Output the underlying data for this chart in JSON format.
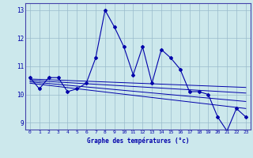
{
  "title": "Graphe des températures (°c)",
  "bg_color": "#cce8ec",
  "line_color": "#0000aa",
  "grid_color": "#99bbcc",
  "xlim": [
    -0.5,
    23.5
  ],
  "ylim": [
    8.75,
    13.25
  ],
  "yticks": [
    9,
    10,
    11,
    12,
    13
  ],
  "xticks": [
    0,
    1,
    2,
    3,
    4,
    5,
    6,
    7,
    8,
    9,
    10,
    11,
    12,
    13,
    14,
    15,
    16,
    17,
    18,
    19,
    20,
    21,
    22,
    23
  ],
  "series_main": {
    "x": [
      0,
      1,
      2,
      3,
      4,
      5,
      6,
      7,
      8,
      9,
      10,
      11,
      12,
      13,
      14,
      15,
      16,
      17,
      18,
      19,
      20,
      21,
      22,
      23
    ],
    "y": [
      10.6,
      10.2,
      10.6,
      10.6,
      10.1,
      10.2,
      10.4,
      11.3,
      13.0,
      12.4,
      11.7,
      10.7,
      11.7,
      10.4,
      11.6,
      11.3,
      10.9,
      10.1,
      10.1,
      10.0,
      9.2,
      8.7,
      9.5,
      9.2
    ]
  },
  "trend_lines": [
    {
      "x": [
        0,
        23
      ],
      "y": [
        10.55,
        10.25
      ]
    },
    {
      "x": [
        0,
        23
      ],
      "y": [
        10.5,
        10.05
      ]
    },
    {
      "x": [
        0,
        23
      ],
      "y": [
        10.45,
        9.75
      ]
    },
    {
      "x": [
        0,
        23
      ],
      "y": [
        10.4,
        9.5
      ]
    }
  ]
}
